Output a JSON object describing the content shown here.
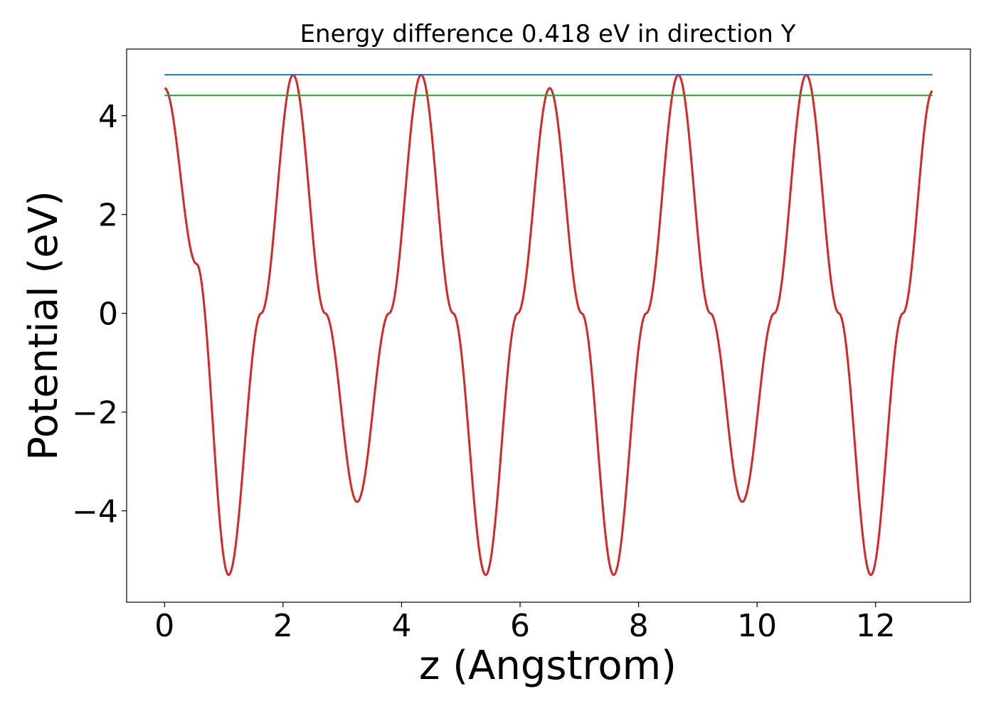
{
  "chart_data": {
    "type": "line",
    "title": "Energy difference 0.418 eV in direction Y",
    "xlabel": "z (Angstrom)",
    "ylabel": "Potential (eV)",
    "xlim": [
      -0.64,
      13.6
    ],
    "ylim": [
      -5.85,
      5.35
    ],
    "x_ticks": [
      0,
      2,
      4,
      6,
      8,
      10,
      12
    ],
    "x_tick_labels": [
      "0",
      "2",
      "4",
      "6",
      "8",
      "10",
      "12"
    ],
    "y_ticks": [
      -4,
      -2,
      0,
      2,
      4
    ],
    "y_tick_labels": [
      "−4",
      "−2",
      "0",
      "2",
      "4"
    ],
    "grid": false,
    "series": [
      {
        "color": "#d62728",
        "style": "line",
        "x": [
          0.0,
          0.54,
          1.08,
          1.63,
          2.17,
          2.71,
          3.25,
          3.79,
          4.33,
          4.87,
          5.42,
          5.96,
          6.5,
          7.04,
          7.58,
          8.13,
          8.67,
          9.21,
          9.75,
          10.29,
          10.83,
          11.38,
          11.92,
          12.46,
          12.96
        ],
        "y": [
          4.56,
          1.0,
          -5.3,
          0.0,
          4.83,
          0.0,
          -3.82,
          0.0,
          4.83,
          0.0,
          -5.3,
          0.0,
          4.56,
          0.0,
          -5.3,
          0.0,
          4.83,
          0.0,
          -3.82,
          0.0,
          4.83,
          0.0,
          -5.3,
          0.0,
          4.5
        ]
      },
      {
        "color": "#1f77b4",
        "style": "hline",
        "x": [
          0.0,
          12.96
        ],
        "y": [
          4.83,
          4.83
        ]
      },
      {
        "color": "#2ca02c",
        "style": "hline",
        "x": [
          0.0,
          12.96
        ],
        "y": [
          4.41,
          4.41
        ]
      }
    ]
  }
}
